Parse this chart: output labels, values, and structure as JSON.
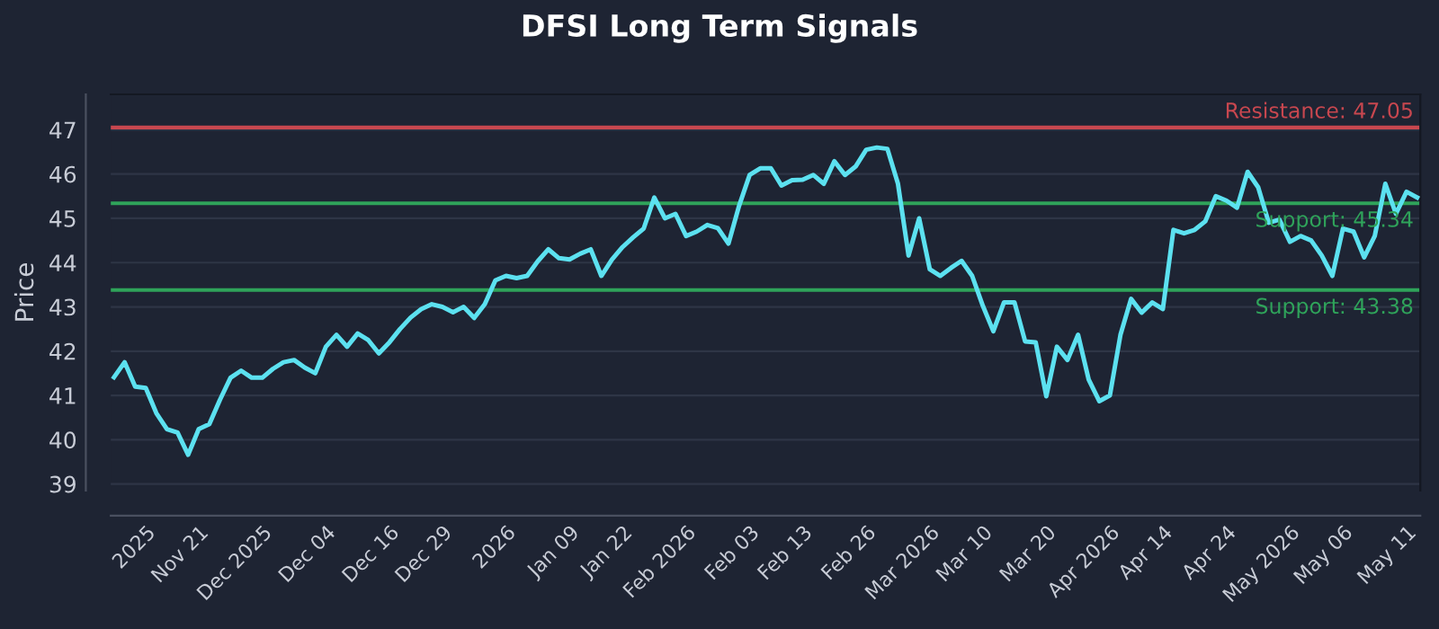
{
  "chart_data": {
    "type": "line",
    "title": "DFSI Long Term Signals",
    "ylabel": "Price",
    "categories": [
      null,
      null,
      null,
      "2025",
      null,
      null,
      null,
      null,
      "Nov 21",
      null,
      null,
      null,
      null,
      null,
      "Dec 2025",
      null,
      null,
      null,
      null,
      null,
      "Dec 04",
      null,
      null,
      null,
      null,
      null,
      "Dec 16",
      null,
      null,
      null,
      null,
      "Dec 29",
      null,
      null,
      null,
      null,
      null,
      "2026",
      null,
      null,
      null,
      null,
      null,
      "Jan 09",
      null,
      null,
      null,
      null,
      "Jan 22",
      null,
      null,
      null,
      null,
      null,
      "Feb 2026",
      null,
      null,
      null,
      null,
      null,
      "Feb 03",
      null,
      null,
      null,
      null,
      "Feb 13",
      null,
      null,
      null,
      null,
      null,
      "Feb 26",
      null,
      null,
      null,
      null,
      null,
      "Mar 2026",
      null,
      null,
      null,
      null,
      "Mar 10",
      null,
      null,
      null,
      null,
      null,
      "Mar 20",
      null,
      null,
      null,
      null,
      null,
      "Apr 2026",
      null,
      null,
      null,
      null,
      "Apr 14",
      null,
      null,
      null,
      null,
      null,
      "Apr 24",
      null,
      null,
      null,
      null,
      null,
      "May 2026",
      null,
      null,
      null,
      null,
      "May 06",
      null,
      null,
      null,
      null,
      null,
      "May 11",
      null
    ],
    "series": [
      {
        "color": "#5ce1f0",
        "values": [
          41.41,
          41.75,
          41.2,
          41.17,
          40.6,
          40.24,
          40.16,
          39.66,
          40.24,
          40.35,
          40.9,
          41.4,
          41.56,
          41.4,
          41.4,
          41.6,
          41.75,
          41.8,
          41.63,
          41.5,
          42.1,
          42.37,
          42.1,
          42.4,
          42.25,
          41.95,
          42.2,
          42.5,
          42.76,
          42.95,
          43.06,
          43.0,
          42.88,
          43.0,
          42.75,
          43.06,
          43.6,
          43.7,
          43.65,
          43.7,
          44.03,
          44.3,
          44.1,
          44.07,
          44.2,
          44.3,
          43.7,
          44.07,
          44.35,
          44.57,
          44.77,
          45.47,
          45.0,
          45.1,
          44.6,
          44.7,
          44.85,
          44.78,
          44.43,
          45.28,
          45.98,
          46.13,
          46.13,
          45.74,
          45.86,
          45.87,
          45.98,
          45.78,
          46.29,
          45.98,
          46.17,
          46.55,
          46.6,
          46.57,
          45.78,
          44.16,
          45.0,
          43.85,
          43.7,
          43.88,
          44.04,
          43.7,
          43.03,
          42.45,
          43.1,
          43.1,
          42.22,
          42.2,
          40.98,
          42.1,
          41.8,
          42.37,
          41.36,
          40.87,
          41.0,
          42.37,
          43.18,
          42.87,
          43.1,
          42.95,
          44.74,
          44.66,
          44.74,
          44.93,
          45.5,
          45.4,
          45.24,
          46.05,
          45.7,
          44.9,
          44.97,
          44.47,
          44.6,
          44.5,
          44.16,
          43.7,
          44.77,
          44.7,
          44.12,
          44.6,
          45.78,
          45.1,
          45.6,
          45.47
        ]
      }
    ],
    "ylim": [
      38.85,
      47.8
    ],
    "yticks": [
      39,
      40,
      41,
      42,
      43,
      44,
      45,
      46,
      47
    ],
    "grid": "y",
    "ref_lines": [
      {
        "axis": "y",
        "value": 47.05,
        "label": "Resistance: 47.05",
        "color": "#c8474f"
      },
      {
        "axis": "y",
        "value": 45.34,
        "label": "Support: 45.34",
        "color": "#2fa35a"
      },
      {
        "axis": "y",
        "value": 43.38,
        "label": "Support: 43.38",
        "color": "#2fa35a"
      }
    ]
  }
}
